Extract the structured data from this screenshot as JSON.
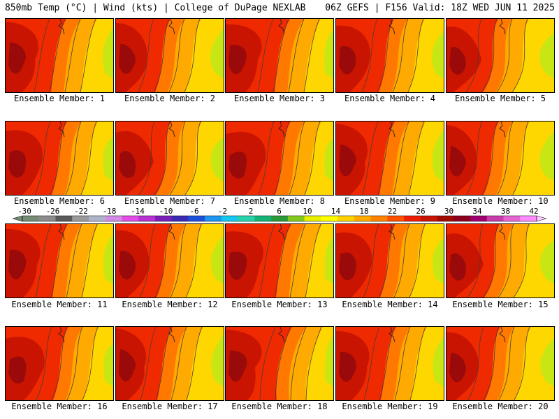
{
  "header": {
    "left": "850mb Temp (°C) | Wind (kts) | College of DuPage NEXLAB",
    "right": "06Z GEFS | F156 Valid: 18Z WED JUN 11 2025"
  },
  "panels": [
    {
      "member": 1,
      "label": "Ensemble Member: 1"
    },
    {
      "member": 2,
      "label": "Ensemble Member: 2"
    },
    {
      "member": 3,
      "label": "Ensemble Member: 3"
    },
    {
      "member": 4,
      "label": "Ensemble Member: 4"
    },
    {
      "member": 5,
      "label": "Ensemble Member: 5"
    },
    {
      "member": 6,
      "label": "Ensemble Member: 6"
    },
    {
      "member": 7,
      "label": "Ensemble Member: 7"
    },
    {
      "member": 8,
      "label": "Ensemble Member: 8"
    },
    {
      "member": 9,
      "label": "Ensemble Member: 9"
    },
    {
      "member": 10,
      "label": "Ensemble Member: 10"
    },
    {
      "member": 11,
      "label": "Ensemble Member: 11"
    },
    {
      "member": 12,
      "label": "Ensemble Member: 12"
    },
    {
      "member": 13,
      "label": "Ensemble Member: 13"
    },
    {
      "member": 14,
      "label": "Ensemble Member: 14"
    },
    {
      "member": 15,
      "label": "Ensemble Member: 15"
    },
    {
      "member": 16,
      "label": "Ensemble Member: 16"
    },
    {
      "member": 17,
      "label": "Ensemble Member: 17"
    },
    {
      "member": 18,
      "label": "Ensemble Member: 18"
    },
    {
      "member": 19,
      "label": "Ensemble Member: 19"
    },
    {
      "member": 20,
      "label": "Ensemble Member: 20"
    }
  ],
  "colorbar": {
    "tick_labels": [
      "-30",
      "-26",
      "-22",
      "-18",
      "-14",
      "-10",
      "-6",
      "-2",
      "2",
      "6",
      "10",
      "14",
      "18",
      "22",
      "26",
      "30",
      "34",
      "38",
      "42"
    ],
    "colors": [
      "#738c73",
      "#8c8c8c",
      "#5a5a5a",
      "#9a9a9a",
      "#b0b4ca",
      "#d28ce6",
      "#e04ee6",
      "#b832d2",
      "#7a1fb8",
      "#3a2ab4",
      "#1e50dc",
      "#1e96f0",
      "#14c8f0",
      "#28d2aa",
      "#14b478",
      "#2a9a3a",
      "#82c81e",
      "#e6f000",
      "#ffff00",
      "#ffd200",
      "#ffaa00",
      "#ff8200",
      "#ff5000",
      "#f01e00",
      "#c81400",
      "#a00a00",
      "#8c001e",
      "#a0006e",
      "#c83caa",
      "#e664d2",
      "#ff8cff"
    ]
  }
}
